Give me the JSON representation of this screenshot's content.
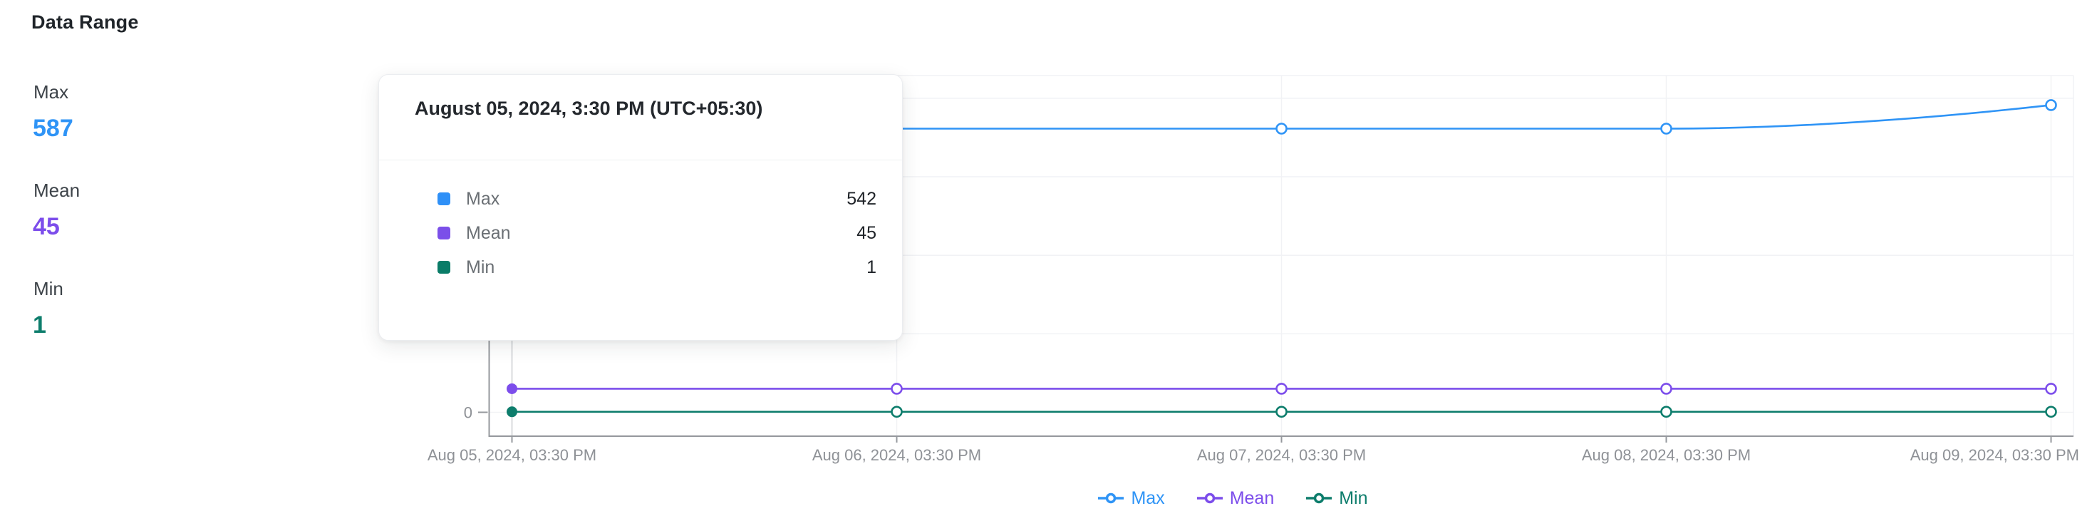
{
  "page": {
    "title": "Data Range"
  },
  "stats": {
    "max": {
      "label": "Max",
      "value": "587",
      "color": "#2f94f6"
    },
    "mean": {
      "label": "Mean",
      "value": "45",
      "color": "#7c4deb"
    },
    "min": {
      "label": "Min",
      "value": "1",
      "color": "#0d7d6c"
    }
  },
  "tooltip": {
    "title": "August 05, 2024, 3:30 PM (UTC+05:30)",
    "rows": [
      {
        "label": "Max",
        "value": "542",
        "color": "#2f90f7"
      },
      {
        "label": "Mean",
        "value": "45",
        "color": "#7b4fe9"
      },
      {
        "label": "Min",
        "value": "1",
        "color": "#0a7c68"
      }
    ]
  },
  "chart_data": {
    "type": "line",
    "x": [
      "Aug 05, 2024, 03:30 PM",
      "Aug 06, 2024, 03:30 PM",
      "Aug 07, 2024, 03:30 PM",
      "Aug 08, 2024, 03:30 PM",
      "Aug 09, 2024, 03:30 PM"
    ],
    "series": [
      {
        "name": "Max",
        "color": "#2f94f6",
        "values": [
          542,
          542,
          542,
          542,
          587
        ]
      },
      {
        "name": "Mean",
        "color": "#7c4deb",
        "values": [
          45,
          45,
          45,
          45,
          45
        ]
      },
      {
        "name": "Min",
        "color": "#0d7d6c",
        "values": [
          1,
          1,
          1,
          1,
          1
        ]
      }
    ],
    "y_axis": {
      "visible_tick_label": "0",
      "gridline_values": [
        0,
        150,
        300,
        450,
        600
      ],
      "approx_max": 644
    },
    "legend": [
      "Max",
      "Mean",
      "Min"
    ],
    "legend_position": "bottom-center",
    "grid": true,
    "hover_index": 0,
    "hovered_x": "Aug 05, 2024, 03:30 PM",
    "smooth": true
  },
  "chart_colors": {
    "axis_line": "#95989d",
    "grid_line": "#f1f2f5",
    "hover_line": "#d9dbde",
    "tick_text": "#8e9196"
  }
}
